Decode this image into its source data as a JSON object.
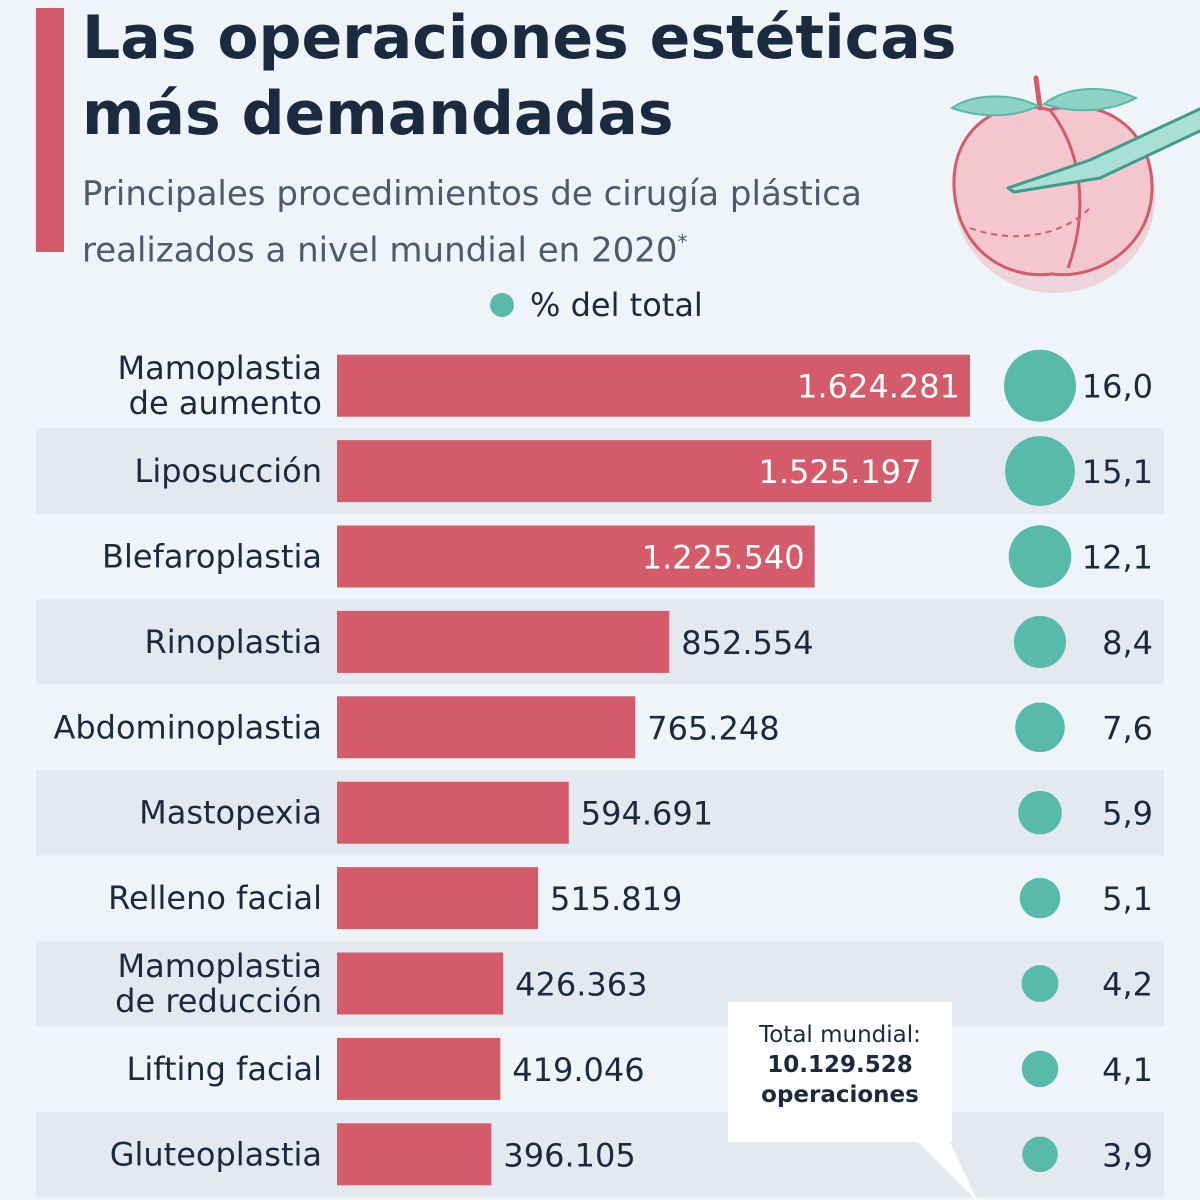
{
  "title": "Las operaciones estéticas más demandadas",
  "subtitle": "Principales procedimientos de cirugía plástica realizados a nivel mundial en 2020",
  "subtitle_mark": "*",
  "legend_label": "% del total",
  "total_box": {
    "label": "Total mundial:",
    "value": "10.129.528",
    "unit": "operaciones"
  },
  "colors": {
    "bar": "#d45b6a",
    "bubble": "#58bbaa",
    "text": "#1b2a3f",
    "band": "#e4e9ef",
    "background": "#eff4f8"
  },
  "chart_data": {
    "type": "bar",
    "orientation": "horizontal",
    "categories": [
      "Mamoplastia de aumento",
      "Liposucción",
      "Blefaroplastia",
      "Rinoplastia",
      "Abdominoplastia",
      "Mastopexia",
      "Relleno facial",
      "Mamoplastia de reducción",
      "Lifting facial",
      "Gluteoplastia"
    ],
    "category_lines": [
      [
        "Mamoplastia",
        "de aumento"
      ],
      [
        "Liposucción"
      ],
      [
        "Blefaroplastia"
      ],
      [
        "Rinoplastia"
      ],
      [
        "Abdominoplastia"
      ],
      [
        "Mastopexia"
      ],
      [
        "Relleno facial"
      ],
      [
        "Mamoplastia",
        "de reducción"
      ],
      [
        "Lifting facial"
      ],
      [
        "Gluteoplastia"
      ]
    ],
    "values": [
      1624281,
      1525197,
      1225540,
      852554,
      765248,
      594691,
      515819,
      426363,
      419046,
      396105
    ],
    "value_labels": [
      "1.624.281",
      "1.525.197",
      "1.225.540",
      "852.554",
      "765.248",
      "594.691",
      "515.819",
      "426.363",
      "419.046",
      "396.105"
    ],
    "percent_of_total": [
      16.0,
      15.1,
      12.1,
      8.4,
      7.6,
      5.9,
      5.1,
      4.2,
      4.1,
      3.9
    ],
    "percent_labels": [
      "16,0",
      "15,1",
      "12,1",
      "8,4",
      "7,6",
      "5,9",
      "5,1",
      "4,2",
      "4,1",
      "3,9"
    ],
    "value_label_inside_bar": [
      true,
      true,
      true,
      false,
      false,
      false,
      false,
      false,
      false,
      false
    ],
    "alternating_row_bands": true,
    "grid": false
  }
}
